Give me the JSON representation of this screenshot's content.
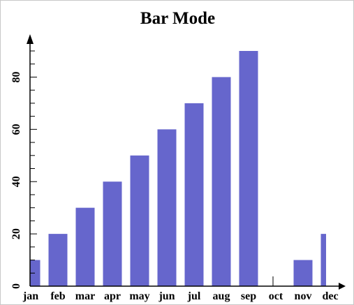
{
  "chart_data": {
    "type": "bar",
    "title": "Bar Mode",
    "xlabel": "",
    "ylabel": "",
    "categories": [
      "jan",
      "feb",
      "mar",
      "apr",
      "may",
      "jun",
      "jul",
      "aug",
      "sep",
      "oct",
      "nov",
      "dec"
    ],
    "values": [
      10,
      20,
      30,
      40,
      50,
      60,
      70,
      80,
      90,
      0,
      10,
      20
    ],
    "ylim": [
      0,
      90
    ],
    "yticks": [
      0,
      20,
      40,
      60,
      80
    ],
    "grid": false,
    "legend": "none",
    "bar_color": "#6666cc",
    "axis_color": "#000000"
  }
}
